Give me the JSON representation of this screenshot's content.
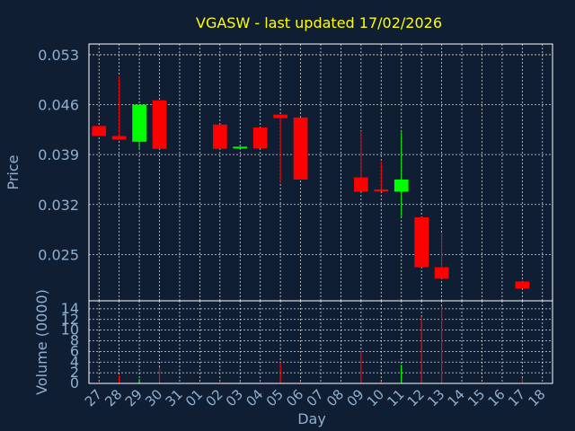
{
  "title": "VGASW - last updated 17/02/2026",
  "colors": {
    "background": "#0f1e33",
    "up": "#00ff00",
    "down": "#ff0000",
    "text": "#8fb0d0",
    "title": "#ffff00",
    "grid": "#d8d8d8"
  },
  "chart_data": [
    {
      "type": "candlestick",
      "title": "VGASW - last updated 17/02/2026",
      "ylabel": "Price",
      "ylim": [
        0.0185,
        0.0545
      ],
      "yticks": [
        "0.025",
        "0.032",
        "0.039",
        "0.046",
        "0.053"
      ],
      "grid": true,
      "days": [
        "27",
        "28",
        "29",
        "30",
        "31",
        "01",
        "02",
        "03",
        "04",
        "05",
        "06",
        "07",
        "08",
        "09",
        "10",
        "11",
        "12",
        "13",
        "14",
        "15",
        "16",
        "17",
        "18"
      ],
      "candles": [
        {
          "day": "27",
          "open": 0.043,
          "close": 0.0416,
          "high": 0.043,
          "low": 0.0416
        },
        {
          "day": "28",
          "open": 0.0416,
          "close": 0.0411,
          "high": 0.05,
          "low": 0.0411
        },
        {
          "day": "29",
          "open": 0.0408,
          "close": 0.046,
          "high": 0.046,
          "low": 0.0398
        },
        {
          "day": "30",
          "open": 0.0466,
          "close": 0.0398,
          "high": 0.0466,
          "low": 0.0398
        },
        {
          "day": "02",
          "open": 0.0432,
          "close": 0.0398,
          "high": 0.0432,
          "low": 0.0398
        },
        {
          "day": "03",
          "open": 0.0399,
          "close": 0.0401,
          "high": 0.0401,
          "low": 0.0399
        },
        {
          "day": "04",
          "open": 0.0428,
          "close": 0.0399,
          "high": 0.0428,
          "low": 0.0399
        },
        {
          "day": "05",
          "open": 0.0446,
          "close": 0.0441,
          "high": 0.0446,
          "low": 0.035
        },
        {
          "day": "06",
          "open": 0.0442,
          "close": 0.0355,
          "high": 0.0442,
          "low": 0.0355
        },
        {
          "day": "09",
          "open": 0.0358,
          "close": 0.0338,
          "high": 0.0423,
          "low": 0.0338
        },
        {
          "day": "10",
          "open": 0.0341,
          "close": 0.0339,
          "high": 0.038,
          "low": 0.0339
        },
        {
          "day": "11",
          "open": 0.0338,
          "close": 0.0355,
          "high": 0.0422,
          "low": 0.0302
        },
        {
          "day": "12",
          "open": 0.0302,
          "close": 0.0232,
          "high": 0.0302,
          "low": 0.0232
        },
        {
          "day": "13",
          "open": 0.0232,
          "close": 0.0216,
          "high": 0.028,
          "low": 0.0216
        },
        {
          "day": "17",
          "open": 0.0212,
          "close": 0.0202,
          "high": 0.0212,
          "low": 0.0202
        }
      ]
    },
    {
      "type": "bar",
      "ylabel": "Volume (0000)",
      "xlabel": "Day",
      "ylim": [
        0,
        15.5
      ],
      "yticks": [
        "0",
        "2",
        "4",
        "6",
        "8",
        "10",
        "12",
        "14"
      ],
      "grid": true,
      "categories": [
        "27",
        "28",
        "29",
        "30",
        "31",
        "01",
        "02",
        "03",
        "04",
        "05",
        "06",
        "07",
        "08",
        "09",
        "10",
        "11",
        "12",
        "13",
        "14",
        "15",
        "16",
        "17",
        "18"
      ],
      "values": [
        0.2,
        1.5,
        0.8,
        3.0,
        0,
        0,
        0.2,
        0.2,
        0.2,
        4.0,
        0.2,
        0,
        0,
        6.0,
        0.3,
        3.5,
        12.5,
        14.5,
        0,
        0,
        0,
        1.0,
        0
      ],
      "bar_colors": [
        "down",
        "down",
        "up",
        "down",
        "down",
        "down",
        "down",
        "up",
        "down",
        "down",
        "down",
        "down",
        "down",
        "down",
        "down",
        "up",
        "down",
        "down",
        "down",
        "down",
        "down",
        "down",
        "down"
      ]
    }
  ]
}
